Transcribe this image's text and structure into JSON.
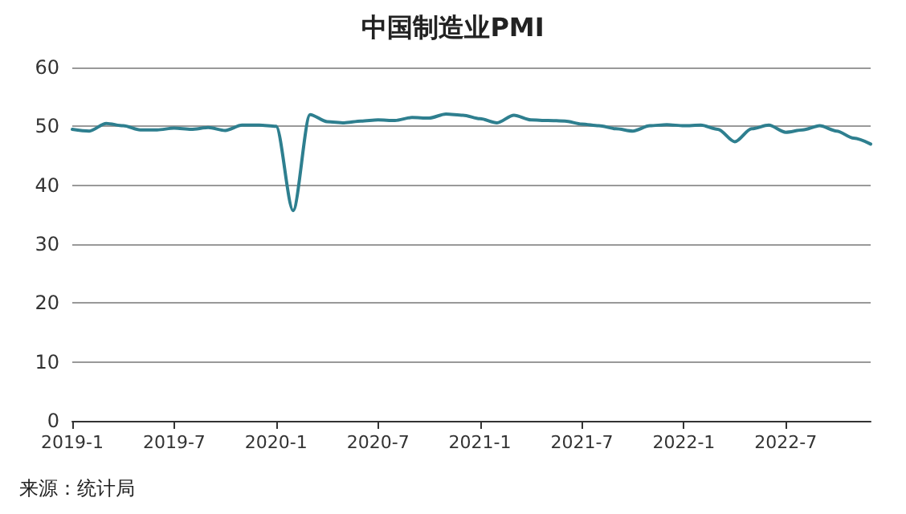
{
  "chart_data": {
    "type": "line",
    "title": "中国制造业PMI",
    "categories": [
      "2019-1",
      null,
      null,
      null,
      null,
      null,
      "2019-7",
      null,
      null,
      null,
      null,
      null,
      "2020-1",
      null,
      null,
      null,
      null,
      null,
      "2020-7",
      null,
      null,
      null,
      null,
      null,
      "2021-1",
      null,
      null,
      null,
      null,
      null,
      "2021-7",
      null,
      null,
      null,
      null,
      null,
      "2022-1",
      null,
      null,
      null,
      null,
      null,
      "2022-7",
      null,
      null,
      null,
      null,
      null
    ],
    "series": [
      {
        "color": "#2e7f8f",
        "values": [
          49.5,
          49.2,
          50.5,
          50.1,
          49.4,
          49.4,
          49.7,
          49.5,
          49.8,
          49.3,
          50.2,
          50.2,
          50.0,
          35.7,
          52.0,
          50.8,
          50.6,
          50.9,
          51.1,
          51.0,
          51.5,
          51.4,
          52.1,
          51.9,
          51.3,
          50.6,
          51.9,
          51.1,
          51.0,
          50.9,
          50.4,
          50.1,
          49.6,
          49.2,
          50.1,
          50.3,
          50.1,
          50.2,
          49.5,
          47.4,
          49.6,
          50.2,
          49.0,
          49.4,
          50.1,
          49.2,
          48.0,
          47.0
        ]
      }
    ],
    "ylim": [
      0,
      60
    ],
    "yticks": [
      0,
      10,
      20,
      30,
      40,
      50,
      60
    ],
    "grid": "y",
    "marker": "none",
    "line_style": "solid",
    "annotations": [
      "来源：统计局"
    ]
  }
}
